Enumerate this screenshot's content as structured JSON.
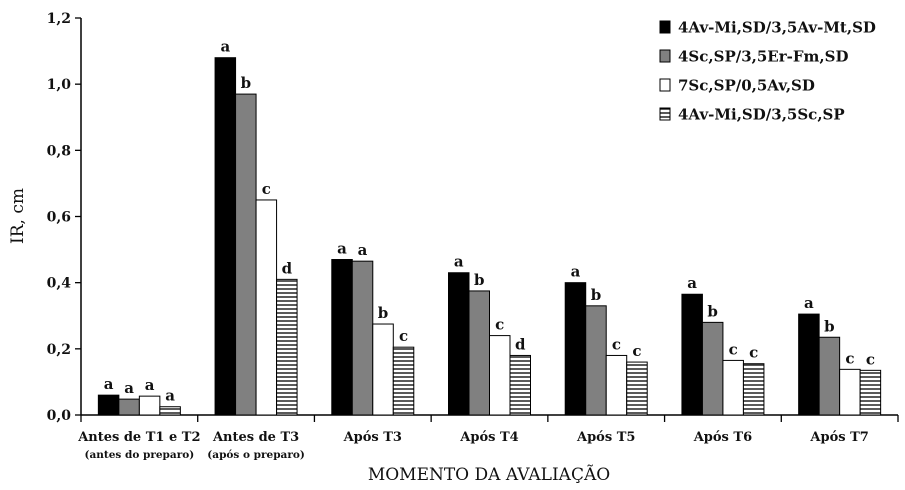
{
  "chart_data": {
    "type": "bar",
    "xlabel": "MOMENTO DA AVALIAÇÃO",
    "ylabel": "IR, cm",
    "ylim": [
      0,
      1.2
    ],
    "yticks": [
      "0,0",
      "0,2",
      "0,4",
      "0,6",
      "0,8",
      "1,0",
      "1,2"
    ],
    "grid": false,
    "legend_position": "top-right",
    "categories": [
      {
        "label": "Antes de T1 e T2",
        "sublabel": "(antes do preparo)"
      },
      {
        "label": "Antes de T3",
        "sublabel": "(após o preparo)"
      },
      {
        "label": "Após T3",
        "sublabel": ""
      },
      {
        "label": "Após T4",
        "sublabel": ""
      },
      {
        "label": "Após T5",
        "sublabel": ""
      },
      {
        "label": "Após T6",
        "sublabel": ""
      },
      {
        "label": "Após T7",
        "sublabel": ""
      }
    ],
    "series": [
      {
        "name": "4Av-Mi,SD/3,5Av-Mt,SD",
        "fill": "#000000",
        "pattern": "solid",
        "values": [
          0.06,
          1.08,
          0.47,
          0.43,
          0.4,
          0.365,
          0.305
        ],
        "letters": [
          "a",
          "a",
          "a",
          "a",
          "a",
          "a",
          "a"
        ]
      },
      {
        "name": "4Sc,SP/3,5Er-Fm,SD",
        "fill": "#808080",
        "pattern": "solid",
        "values": [
          0.048,
          0.97,
          0.465,
          0.375,
          0.33,
          0.28,
          0.235
        ],
        "letters": [
          "a",
          "b",
          "a",
          "b",
          "b",
          "b",
          "b"
        ]
      },
      {
        "name": "7Sc,SP/0,5Av,SD",
        "fill": "#ffffff",
        "pattern": "solid",
        "values": [
          0.057,
          0.65,
          0.275,
          0.24,
          0.18,
          0.165,
          0.138
        ],
        "letters": [
          "a",
          "c",
          "b",
          "c",
          "c",
          "c",
          "c"
        ]
      },
      {
        "name": "4Av-Mi,SD/3,5Sc,SP",
        "fill": "#ffffff",
        "pattern": "horizontal-lines",
        "values": [
          0.025,
          0.41,
          0.205,
          0.18,
          0.16,
          0.155,
          0.135
        ],
        "letters": [
          "a",
          "d",
          "c",
          "d",
          "c",
          "c",
          "c"
        ]
      }
    ]
  }
}
